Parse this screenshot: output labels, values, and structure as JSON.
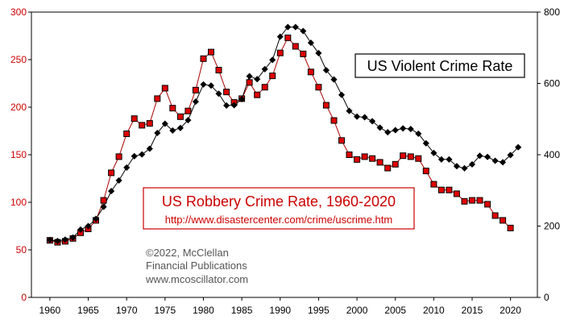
{
  "chart_data": {
    "type": "line",
    "title": "US Robbery Crime Rate, 1960-2020",
    "subtitle": "http://www.disastercenter.com/crime/uscrime.htm",
    "second_title": "US Violent Crime Rate",
    "credit": [
      "©2022, McClellan",
      "Financial Publications",
      "www.mcoscillator.com"
    ],
    "x_ticks": [
      1960,
      1965,
      1970,
      1975,
      1980,
      1985,
      1990,
      1995,
      2000,
      2005,
      2010,
      2015,
      2020
    ],
    "x_range": [
      1957.6,
      2023.5
    ],
    "y_left": {
      "range": [
        0,
        300
      ],
      "ticks": [
        0,
        50,
        100,
        150,
        200,
        250,
        300
      ],
      "color": "#cc0000"
    },
    "y_right": {
      "range": [
        0,
        800
      ],
      "ticks": [
        0,
        200,
        400,
        600,
        800
      ],
      "color": "#000000"
    },
    "series": [
      {
        "name": "US Robbery Crime Rate",
        "axis": "left",
        "color": "#cc0000",
        "marker": "square",
        "x": [
          1960,
          1961,
          1962,
          1963,
          1964,
          1965,
          1966,
          1967,
          1968,
          1969,
          1970,
          1971,
          1972,
          1973,
          1974,
          1975,
          1976,
          1977,
          1978,
          1979,
          1980,
          1981,
          1982,
          1983,
          1984,
          1985,
          1986,
          1987,
          1988,
          1989,
          1990,
          1991,
          1992,
          1993,
          1994,
          1995,
          1996,
          1997,
          1998,
          1999,
          2000,
          2001,
          2002,
          2003,
          2004,
          2005,
          2006,
          2007,
          2008,
          2009,
          2010,
          2011,
          2012,
          2013,
          2014,
          2015,
          2016,
          2017,
          2018,
          2019,
          2020
        ],
        "values": [
          60,
          58,
          59,
          62,
          68,
          72,
          81,
          102,
          131,
          148,
          172,
          188,
          181,
          183,
          209,
          220,
          199,
          190,
          196,
          218,
          251,
          258,
          239,
          216,
          205,
          209,
          226,
          213,
          221,
          233,
          257,
          273,
          264,
          256,
          237,
          221,
          202,
          186,
          165,
          150,
          145,
          148,
          146,
          142,
          136,
          140,
          149,
          148,
          146,
          133,
          119,
          113,
          113,
          109,
          101,
          102,
          102,
          98,
          86,
          81,
          73
        ]
      },
      {
        "name": "US Violent Crime Rate",
        "axis": "right",
        "color": "#000000",
        "marker": "diamond",
        "x": [
          1960,
          1961,
          1962,
          1963,
          1964,
          1965,
          1966,
          1967,
          1968,
          1969,
          1970,
          1971,
          1972,
          1973,
          1974,
          1975,
          1976,
          1977,
          1978,
          1979,
          1980,
          1981,
          1982,
          1983,
          1984,
          1985,
          1986,
          1987,
          1988,
          1989,
          1990,
          1991,
          1992,
          1993,
          1994,
          1995,
          1996,
          1997,
          1998,
          1999,
          2000,
          2001,
          2002,
          2003,
          2004,
          2005,
          2006,
          2007,
          2008,
          2009,
          2010,
          2011,
          2012,
          2013,
          2014,
          2015,
          2016,
          2017,
          2018,
          2019,
          2020,
          2021
        ],
        "values": [
          161,
          158,
          162,
          168,
          190,
          200,
          220,
          254,
          298,
          328,
          364,
          396,
          401,
          417,
          461,
          487,
          468,
          475,
          497,
          549,
          597,
          594,
          571,
          538,
          539,
          556,
          620,
          612,
          640,
          666,
          731,
          758,
          758,
          747,
          714,
          685,
          637,
          611,
          568,
          523,
          507,
          505,
          494,
          476,
          463,
          469,
          474,
          472,
          459,
          432,
          405,
          387,
          387,
          368,
          362,
          373,
          397,
          394,
          383,
          379,
          399,
          421
        ]
      }
    ]
  }
}
